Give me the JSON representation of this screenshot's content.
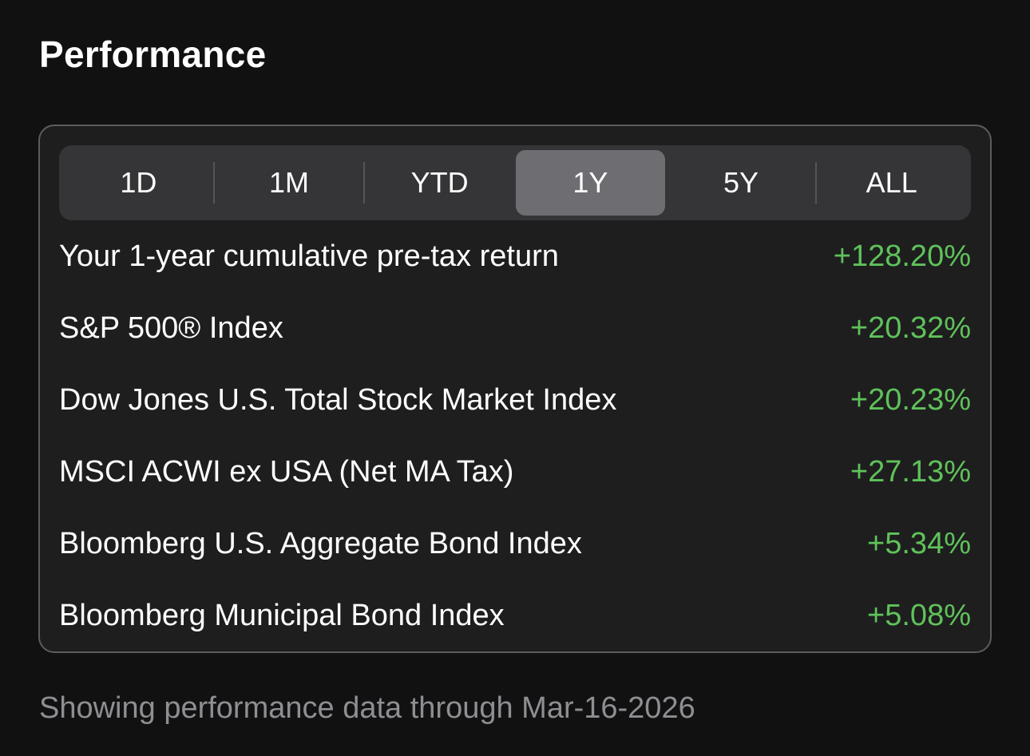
{
  "section": {
    "title": "Performance"
  },
  "periods": {
    "selected": "1Y",
    "items": [
      {
        "label": "1D"
      },
      {
        "label": "1M"
      },
      {
        "label": "YTD"
      },
      {
        "label": "1Y"
      },
      {
        "label": "5Y"
      },
      {
        "label": "ALL"
      }
    ]
  },
  "returns": [
    {
      "label": "Your 1-year cumulative pre-tax return",
      "value": "+128.20%"
    },
    {
      "label": "S&P 500® Index",
      "value": "+20.32%"
    },
    {
      "label": "Dow Jones U.S. Total Stock Market Index",
      "value": "+20.23%"
    },
    {
      "label": "MSCI ACWI ex USA (Net MA Tax)",
      "value": "+27.13%"
    },
    {
      "label": "Bloomberg U.S. Aggregate Bond Index",
      "value": "+5.34%"
    },
    {
      "label": "Bloomberg Municipal Bond Index",
      "value": "+5.08%"
    }
  ],
  "footer": {
    "note": "Showing performance data through Mar-16-2026"
  },
  "colors": {
    "background": "#111111",
    "card": "#1e1e1f",
    "positive": "#5fc25a",
    "selected_segment": "#6e6e72"
  }
}
